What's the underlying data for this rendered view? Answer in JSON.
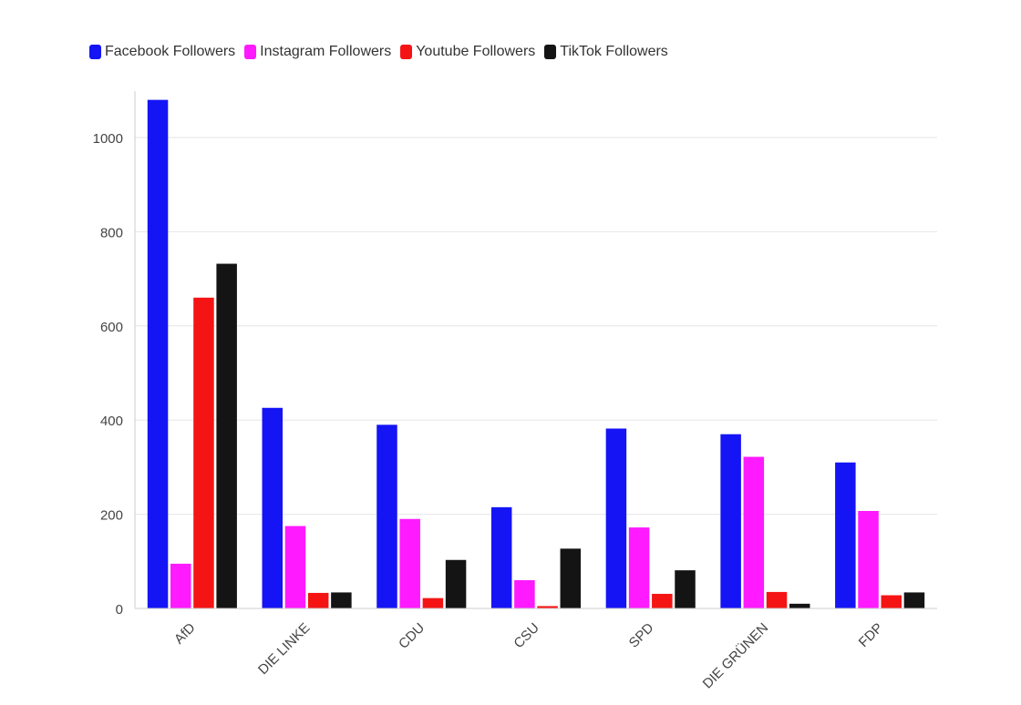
{
  "chart_data": {
    "type": "bar",
    "title": "",
    "xlabel": "",
    "ylabel": "",
    "ylim": [
      0,
      1100
    ],
    "yticks": [
      0,
      200,
      400,
      600,
      800,
      1000
    ],
    "grid": true,
    "legend_position": "top-left",
    "categories": [
      "AfD",
      "DIE LINKE",
      "CDU",
      "CSU",
      "SPD",
      "DIE GRÜNEN",
      "FDP"
    ],
    "series": [
      {
        "name": "Facebook Followers",
        "color": "#1414f5",
        "values": [
          1080,
          426,
          390,
          215,
          382,
          370,
          310
        ]
      },
      {
        "name": "Instagram Followers",
        "color": "#ff1aff",
        "values": [
          95,
          175,
          190,
          60,
          172,
          322,
          207
        ]
      },
      {
        "name": "Youtube Followers",
        "color": "#f51414",
        "values": [
          660,
          33,
          22,
          5,
          31,
          35,
          28
        ]
      },
      {
        "name": "TikTok Followers",
        "color": "#141414",
        "values": [
          732,
          34,
          103,
          127,
          81,
          10,
          34
        ]
      }
    ]
  }
}
